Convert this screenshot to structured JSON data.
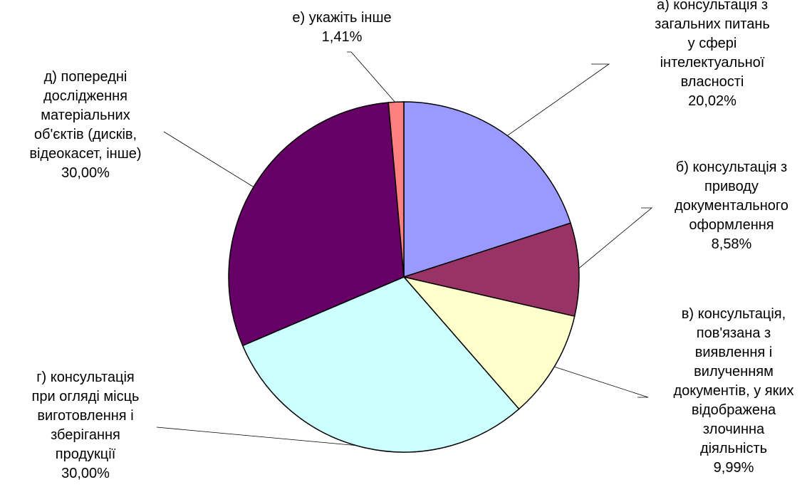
{
  "chart_data": {
    "type": "pie",
    "slices": [
      {
        "name": "а) консультація з загальних питань у сфері інтелектуальної власності",
        "lines": [
          "а) консультація з",
          "загальних питань",
          "у сфері",
          "інтелектуальної",
          "власності"
        ],
        "value": 20.02,
        "value_label": "20,02%",
        "color": "#9999ff"
      },
      {
        "name": "б) консультація з приводу документального оформлення",
        "lines": [
          "б) консультація з",
          "приводу",
          "документального",
          "оформлення"
        ],
        "value": 8.58,
        "value_label": "8,58%",
        "color": "#993366"
      },
      {
        "name": "в) консультація, пов'язана з виявлення і вилученням документів, у яких відображена злочинна діяльність",
        "lines": [
          "в) консультація,",
          "пов'язана з",
          "виявлення і",
          "вилученням",
          "документів, у яких",
          "відображена",
          "злочинна",
          "діяльність"
        ],
        "value": 9.99,
        "value_label": "9,99%",
        "color": "#ffffcc"
      },
      {
        "name": "г) консультація при огляді місць виготовлення і зберігання продукції",
        "lines": [
          "г) консультація",
          "при огляді місць",
          "виготовлення і",
          "зберігання",
          "продукції"
        ],
        "value": 30.0,
        "value_label": "30,00%",
        "color": "#ccffff"
      },
      {
        "name": "д) попередні дослідження матеріальних об'єктів (дисків, відеокасет, інше)",
        "lines": [
          "д) попередні",
          "дослідження",
          "матеріальних",
          "об'єктів (дисків,",
          "відеокасет, інше)"
        ],
        "value": 30.0,
        "value_label": "30,00%",
        "color": "#660066"
      },
      {
        "name": "е) укажіть інше",
        "lines": [
          "е) укажіть інше"
        ],
        "value": 1.41,
        "value_label": "1,41%",
        "color": "#ff8080"
      }
    ],
    "start_angle": "12 o'clock",
    "direction": "clockwise",
    "legend": "none",
    "title": ""
  }
}
